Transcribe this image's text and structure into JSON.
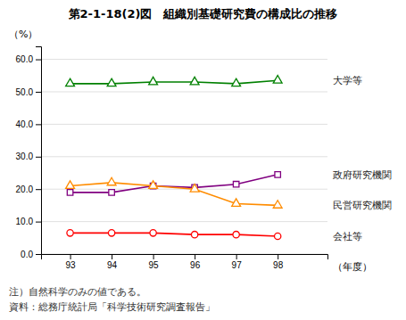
{
  "chart_data": {
    "type": "line",
    "title": "第2-1-18(2)図　組織別基礎研究費の構成比の推移",
    "x_label": "（年度）",
    "y_label": "（%）",
    "annotations": [
      "注）自然科学のみの値である。",
      "資料：総務庁統計局「科学技術研究調査報告」"
    ],
    "x": [
      93,
      94,
      95,
      96,
      97,
      98
    ],
    "series": [
      {
        "name": "大学等",
        "color": "#008000",
        "marker": "triangle",
        "values": [
          52.5,
          52.5,
          53.0,
          53.0,
          52.5,
          53.5
        ]
      },
      {
        "name": "政府研究機関",
        "color": "#800080",
        "marker": "square",
        "values": [
          19.0,
          19.0,
          21.0,
          20.5,
          21.5,
          24.5
        ]
      },
      {
        "name": "民営研究機関",
        "color": "#FF8C00",
        "marker": "triangle",
        "values": [
          21.0,
          22.0,
          21.0,
          20.0,
          15.5,
          15.0
        ]
      },
      {
        "name": "会社等",
        "color": "#FF0000",
        "marker": "circle",
        "values": [
          6.5,
          6.5,
          6.5,
          6.0,
          6.0,
          5.5
        ]
      }
    ],
    "xlim": [
      92.3,
      99.2
    ],
    "xticks": [
      93,
      94,
      95,
      96,
      97,
      98
    ],
    "ylim": [
      0.0,
      64.0
    ],
    "yticks": [
      {
        "value": 0,
        "label": "0.0"
      },
      {
        "value": 10,
        "label": "10.0"
      },
      {
        "value": 20,
        "label": "20.0"
      },
      {
        "value": 30,
        "label": "30.0"
      },
      {
        "value": 40,
        "label": "40.0"
      },
      {
        "value": 50,
        "label": "50.0"
      },
      {
        "value": 60,
        "label": "60.0"
      }
    ],
    "grid": true
  }
}
